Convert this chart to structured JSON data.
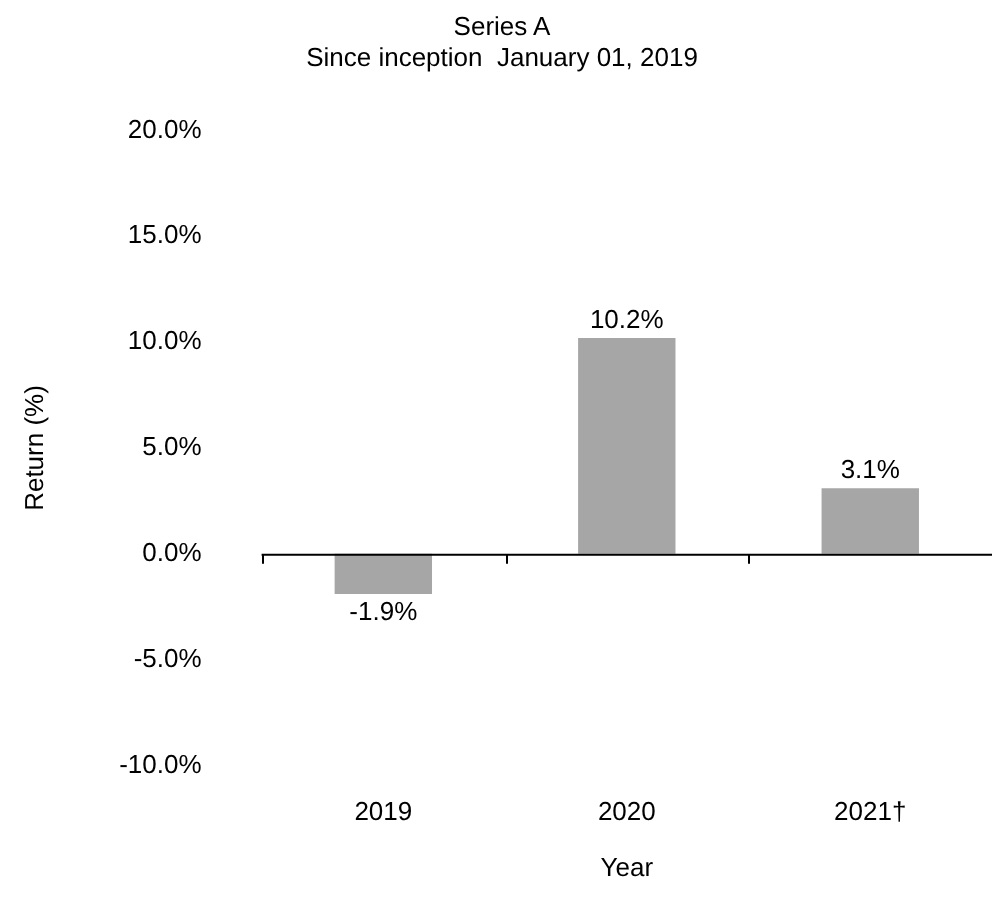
{
  "chart_data": {
    "type": "bar",
    "title": "Series A",
    "subtitle": "Since inception  January 01, 2019",
    "xlabel": "Year",
    "ylabel": "Return (%)",
    "categories": [
      "2019",
      "2020",
      "2021†"
    ],
    "values": [
      -1.9,
      10.2,
      3.1
    ],
    "color": "#a6a6a6",
    "value_labels": [
      "-1.9%",
      "10.2%",
      "3.1%"
    ],
    "ylim": [
      -10,
      20
    ],
    "yticks": [
      {
        "value": -10,
        "label": "-10.0%"
      },
      {
        "value": -5,
        "label": "-5.0%"
      },
      {
        "value": 0,
        "label": "0.0%"
      },
      {
        "value": 5,
        "label": "5.0%"
      },
      {
        "value": 10,
        "label": "10.0%"
      },
      {
        "value": 15,
        "label": "15.0%"
      },
      {
        "value": 20,
        "label": "20.0%"
      }
    ],
    "legend": false
  }
}
